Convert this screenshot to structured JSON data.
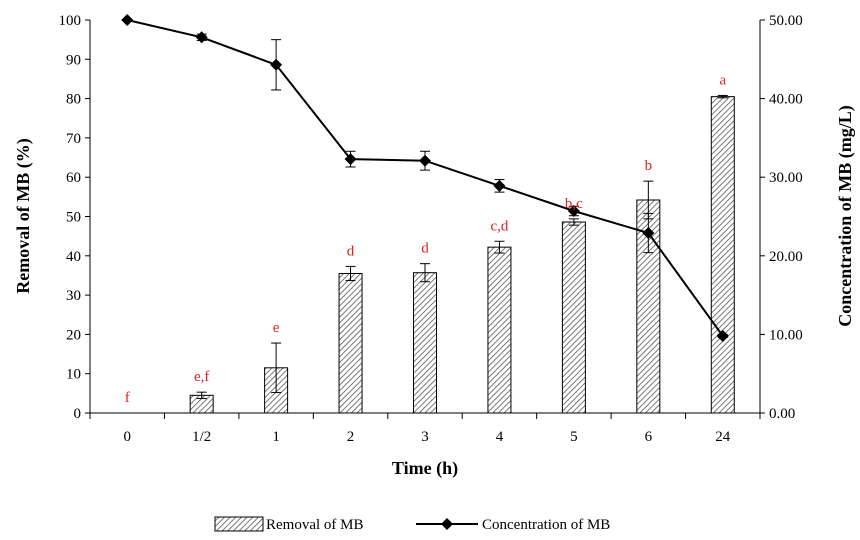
{
  "chart_data": {
    "type": "bar+line",
    "categories": [
      "0",
      "1/2",
      "1",
      "2",
      "3",
      "4",
      "5",
      "6",
      "24"
    ],
    "xlabel": "Time (h)",
    "ylabel_left": "Removal of MB (%)",
    "ylabel_right": "Concentration of MB (mg/L)",
    "ylim_left": [
      0,
      100
    ],
    "ylim_right": [
      0,
      50
    ],
    "left_ticks": [
      "0",
      "10",
      "20",
      "30",
      "40",
      "50",
      "60",
      "70",
      "80",
      "90",
      "100"
    ],
    "right_ticks": [
      "0.00",
      "10.00",
      "20.00",
      "30.00",
      "40.00",
      "50.00"
    ],
    "grid": false,
    "legend_position": "bottom",
    "series": [
      {
        "name": "Removal of MB",
        "kind": "bar",
        "axis": "left",
        "values": [
          0,
          4.5,
          11.5,
          35.5,
          35.7,
          42.2,
          48.6,
          54.2,
          80.5
        ],
        "errors": [
          0,
          0.8,
          6.3,
          1.8,
          2.3,
          1.5,
          0.8,
          4.8,
          0.3
        ],
        "labels": [
          "f",
          "e,f",
          "e",
          "d",
          "d",
          "c,d",
          "b,c",
          "b",
          "a"
        ]
      },
      {
        "name": "Concentration of MB",
        "kind": "line",
        "axis": "right",
        "values": [
          50.0,
          47.8,
          44.3,
          32.3,
          32.1,
          28.9,
          25.7,
          22.9,
          9.8
        ],
        "errors": [
          0,
          0.4,
          3.2,
          1.0,
          1.2,
          0.8,
          0.6,
          2.5,
          0.2
        ]
      }
    ],
    "colors": {
      "label": "#e02020",
      "line": "#000000",
      "bar_stroke": "#000000"
    }
  }
}
